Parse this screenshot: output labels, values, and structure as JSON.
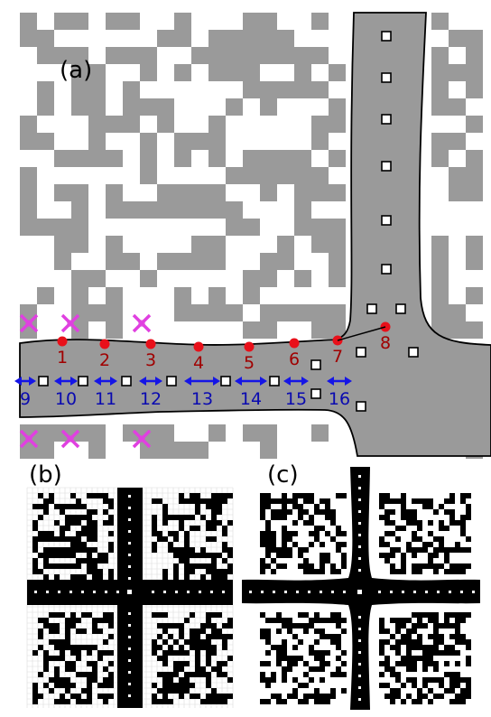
{
  "panels": {
    "a": {
      "label": "(a)"
    },
    "b": {
      "label": "(b)"
    },
    "c": {
      "label": "(c)"
    }
  },
  "red_points": [
    {
      "label": "1"
    },
    {
      "label": "2"
    },
    {
      "label": "3"
    },
    {
      "label": "4"
    },
    {
      "label": "5"
    },
    {
      "label": "6"
    },
    {
      "label": "7"
    },
    {
      "label": "8"
    }
  ],
  "blue_arrows": [
    {
      "label": "9"
    },
    {
      "label": "10"
    },
    {
      "label": "11"
    },
    {
      "label": "12"
    },
    {
      "label": "13"
    },
    {
      "label": "14"
    },
    {
      "label": "15"
    },
    {
      "label": "16"
    }
  ],
  "colors": {
    "material_gray": "#9a9a9a",
    "red_marker": "#e8101a",
    "red_label": "#a00000",
    "blue_arrow": "#1515e6",
    "blue_label": "#0a0ab0",
    "magenta_cross": "#e040e0",
    "black": "#000000",
    "white": "#ffffff"
  }
}
